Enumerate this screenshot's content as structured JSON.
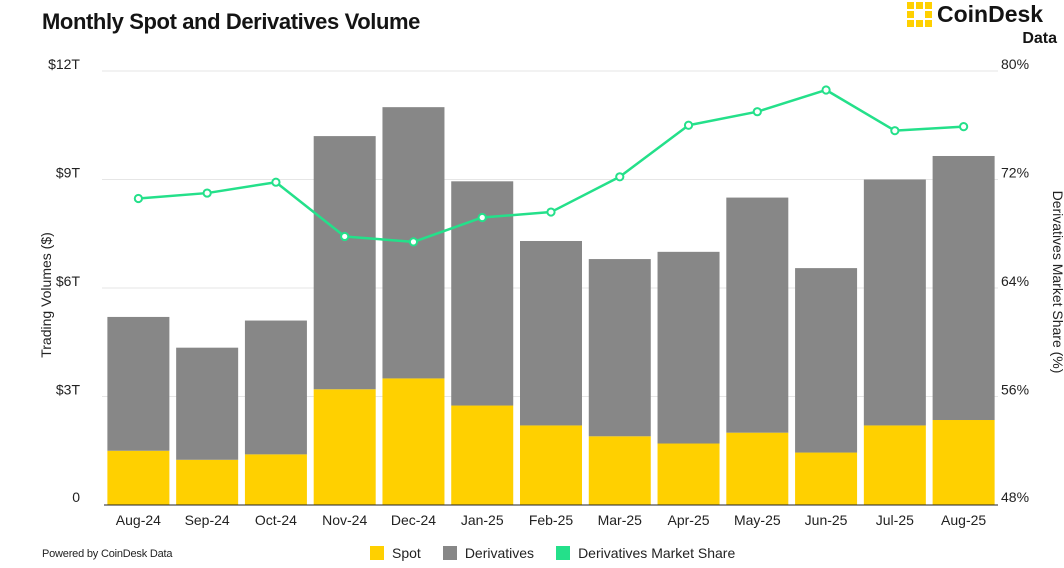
{
  "title": "Monthly Spot and Derivatives Volume",
  "brand": {
    "name": "CoinDesk",
    "sub": "Data"
  },
  "footer": "Powered by CoinDesk Data",
  "colors": {
    "spot": "#FFD000",
    "derivatives": "#878787",
    "share": "#24E08A",
    "grid": "#e6e6e6"
  },
  "chart_data": {
    "type": "bar",
    "stacked": true,
    "categories": [
      "Aug-24",
      "Sep-24",
      "Oct-24",
      "Nov-24",
      "Dec-24",
      "Jan-25",
      "Feb-25",
      "Mar-25",
      "Apr-25",
      "May-25",
      "Jun-25",
      "Jul-25",
      "Aug-25"
    ],
    "series": [
      {
        "name": "Spot",
        "axis": "left",
        "values": [
          1.5,
          1.25,
          1.4,
          3.2,
          3.5,
          2.75,
          2.2,
          1.9,
          1.7,
          2.0,
          1.45,
          2.2,
          2.35
        ]
      },
      {
        "name": "Derivatives",
        "axis": "left",
        "values": [
          3.7,
          3.1,
          3.7,
          7.0,
          7.5,
          6.2,
          5.1,
          4.9,
          5.3,
          6.5,
          5.1,
          6.8,
          7.3
        ]
      },
      {
        "name": "Derivatives Market Share",
        "type": "line",
        "axis": "right",
        "values": [
          70.6,
          71.0,
          71.8,
          67.8,
          67.4,
          69.2,
          69.6,
          72.2,
          76.0,
          77.0,
          78.6,
          75.6,
          75.9
        ]
      }
    ],
    "ylabel": "Trading Volumes ($)",
    "y2label": "Derivatives Market Share (%)",
    "ylim": [
      0,
      12
    ],
    "y2lim": [
      48,
      80
    ],
    "yticks": [
      "0",
      "$3T",
      "$6T",
      "$9T",
      "$12T"
    ],
    "y2ticks": [
      "48%",
      "56%",
      "64%",
      "72%",
      "80%"
    ],
    "grid": true,
    "legend": "bottom-center"
  }
}
